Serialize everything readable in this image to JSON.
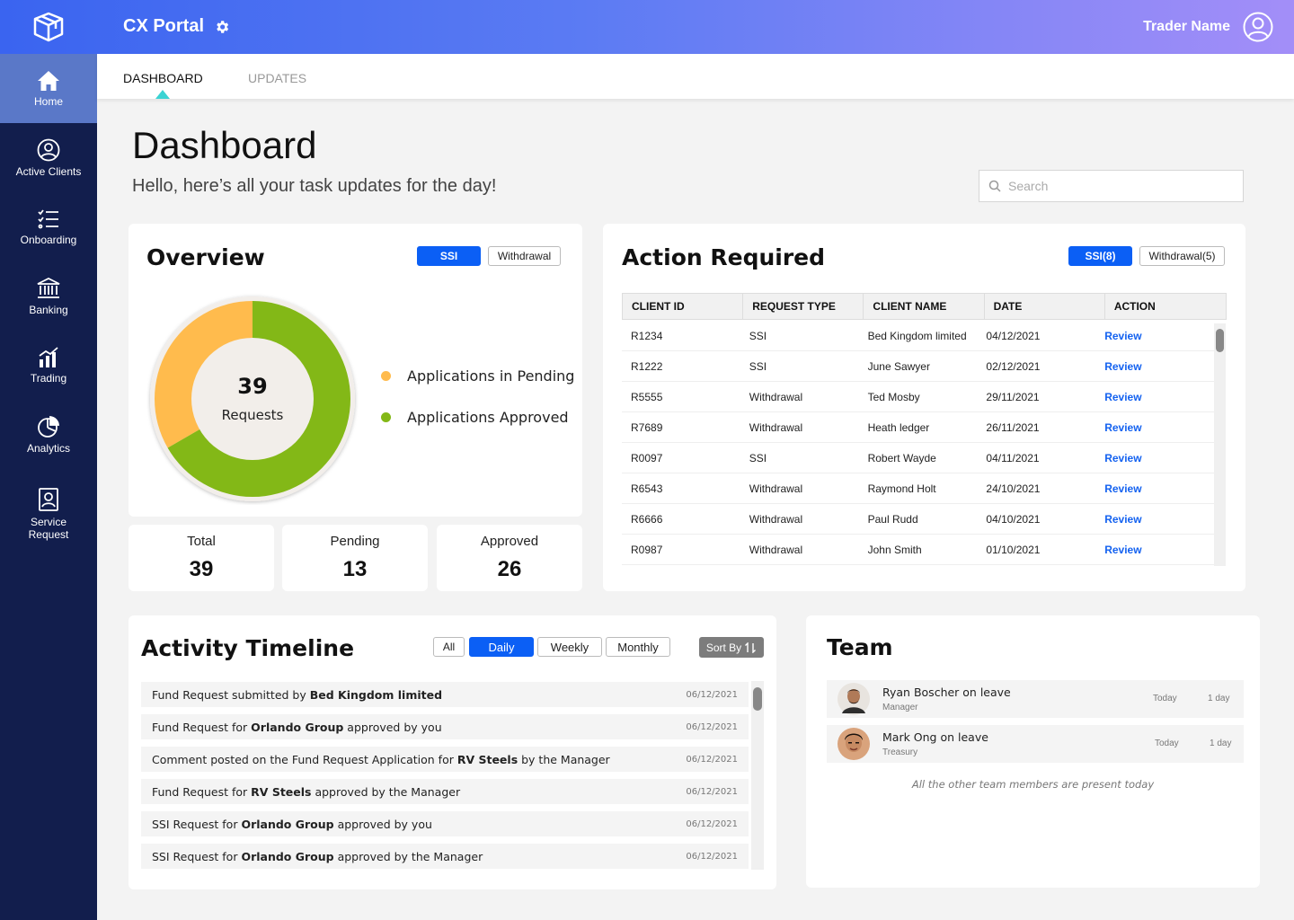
{
  "header": {
    "title": "CX Portal",
    "user_name": "Trader Name"
  },
  "sidebar": {
    "items": [
      {
        "label": "Home"
      },
      {
        "label": "Active Clients"
      },
      {
        "label": "Onboarding"
      },
      {
        "label": "Banking"
      },
      {
        "label": "Trading"
      },
      {
        "label": "Analytics"
      },
      {
        "label": "Service Request"
      }
    ]
  },
  "tabs": {
    "dashboard": "DASHBOARD",
    "updates": "UPDATES"
  },
  "page": {
    "title": "Dashboard",
    "subtitle": "Hello, here’s all your task updates for the day!"
  },
  "search": {
    "placeholder": "Search"
  },
  "overview": {
    "title": "Overview",
    "btn_ssi": "SSI",
    "btn_withdrawal": "Withdrawal",
    "center_value": "39",
    "center_label": "Requests",
    "legend_pending": "Applications in Pending",
    "legend_approved": "Applications Approved",
    "colors": {
      "pending": "#ffbb4d",
      "approved": "#83b817"
    },
    "pending_count": 13,
    "approved_count": 26,
    "stats": [
      {
        "label": "Total",
        "value": "39"
      },
      {
        "label": "Pending",
        "value": "13"
      },
      {
        "label": "Approved",
        "value": "26"
      }
    ]
  },
  "action": {
    "title": "Action Required",
    "btn_ssi": "SSI(8)",
    "btn_withdrawal": "Withdrawal(5)",
    "columns": [
      "CLIENT ID",
      "REQUEST TYPE",
      "CLIENT NAME",
      "DATE",
      "ACTION"
    ],
    "rows": [
      [
        "R1234",
        "SSI",
        "Bed Kingdom limited",
        "04/12/2021",
        "Review"
      ],
      [
        "R1222",
        "SSI",
        "June Sawyer",
        "02/12/2021",
        "Review"
      ],
      [
        "R5555",
        "Withdrawal",
        "Ted Mosby",
        "29/11/2021",
        "Review"
      ],
      [
        "R7689",
        "Withdrawal",
        "Heath ledger",
        "26/11/2021",
        "Review"
      ],
      [
        "R0097",
        "SSI",
        "Robert Wayde",
        "04/11/2021",
        "Review"
      ],
      [
        "R6543",
        "Withdrawal",
        "Raymond Holt",
        "24/10/2021",
        "Review"
      ],
      [
        "R6666",
        "Withdrawal",
        "Paul Rudd",
        "04/10/2021",
        "Review"
      ],
      [
        "R0987",
        "Withdrawal",
        "John Smith",
        "01/10/2021",
        "Review"
      ]
    ]
  },
  "activity": {
    "title": "Activity Timeline",
    "filters": [
      "All",
      "Daily",
      "Weekly",
      "Monthly"
    ],
    "sort_label": "Sort By",
    "items": [
      {
        "pre": "Fund Request submitted by ",
        "bold": "Bed Kingdom limited",
        "post": "",
        "date": "06/12/2021"
      },
      {
        "pre": "Fund Request for ",
        "bold": "Orlando Group",
        "post": " approved by you",
        "date": "06/12/2021"
      },
      {
        "pre": "Comment posted on the Fund Request Application for ",
        "bold": "RV Steels",
        "post": " by the Manager",
        "date": "06/12/2021"
      },
      {
        "pre": "Fund Request for ",
        "bold": "RV Steels",
        "post": " approved by the Manager",
        "date": "06/12/2021"
      },
      {
        "pre": "SSI Request for ",
        "bold": "Orlando Group",
        "post": " approved by you",
        "date": "06/12/2021"
      },
      {
        "pre": "SSI Request for ",
        "bold": "Orlando Group",
        "post": " approved by the Manager",
        "date": "06/12/2021"
      }
    ]
  },
  "team": {
    "title": "Team",
    "members": [
      {
        "name": "Ryan Boscher on leave",
        "role": "Manager",
        "when": "Today",
        "duration": "1 day"
      },
      {
        "name": "Mark Ong on leave",
        "role": "Treasury",
        "when": "Today",
        "duration": "1 day"
      }
    ],
    "note": "All the other team members are present today"
  }
}
